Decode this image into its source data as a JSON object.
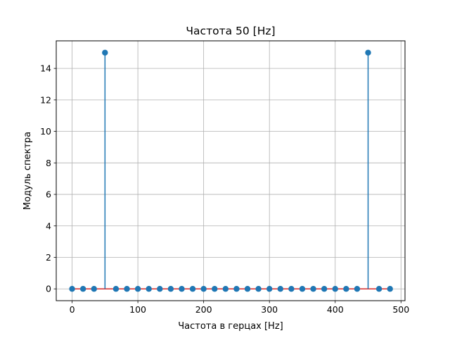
{
  "chart_data": {
    "type": "stem",
    "title": "Частота 50 [Hz]",
    "xlabel": "Частота в герцах [Hz]",
    "ylabel": "Модуль спектра",
    "xlim": [
      -24.1,
      506.1
    ],
    "ylim": [
      -0.75,
      15.75
    ],
    "grid": true,
    "legend": "none",
    "x_ticks": [
      0,
      100,
      200,
      300,
      400,
      500
    ],
    "y_ticks": [
      0,
      2,
      4,
      6,
      8,
      10,
      12,
      14
    ],
    "x": [
      0,
      16.67,
      33.33,
      50,
      66.67,
      83.33,
      100,
      116.67,
      133.33,
      150,
      166.67,
      183.33,
      200,
      216.67,
      233.33,
      250,
      266.67,
      283.33,
      300,
      316.67,
      333.33,
      350,
      366.67,
      383.33,
      400,
      416.67,
      433.33,
      450,
      466.67,
      483.33
    ],
    "values": [
      0,
      0,
      0,
      15,
      0,
      0,
      0,
      0,
      0,
      0,
      0,
      0,
      0,
      0,
      0,
      0,
      0,
      0,
      0,
      0,
      0,
      0,
      0,
      0,
      0,
      0,
      0,
      15,
      0,
      0
    ],
    "baseline": 0,
    "colors": {
      "stem": "#1f77b4",
      "marker": "#1f77b4",
      "baseline": "#d62728",
      "grid": "#b0b0b0"
    }
  }
}
